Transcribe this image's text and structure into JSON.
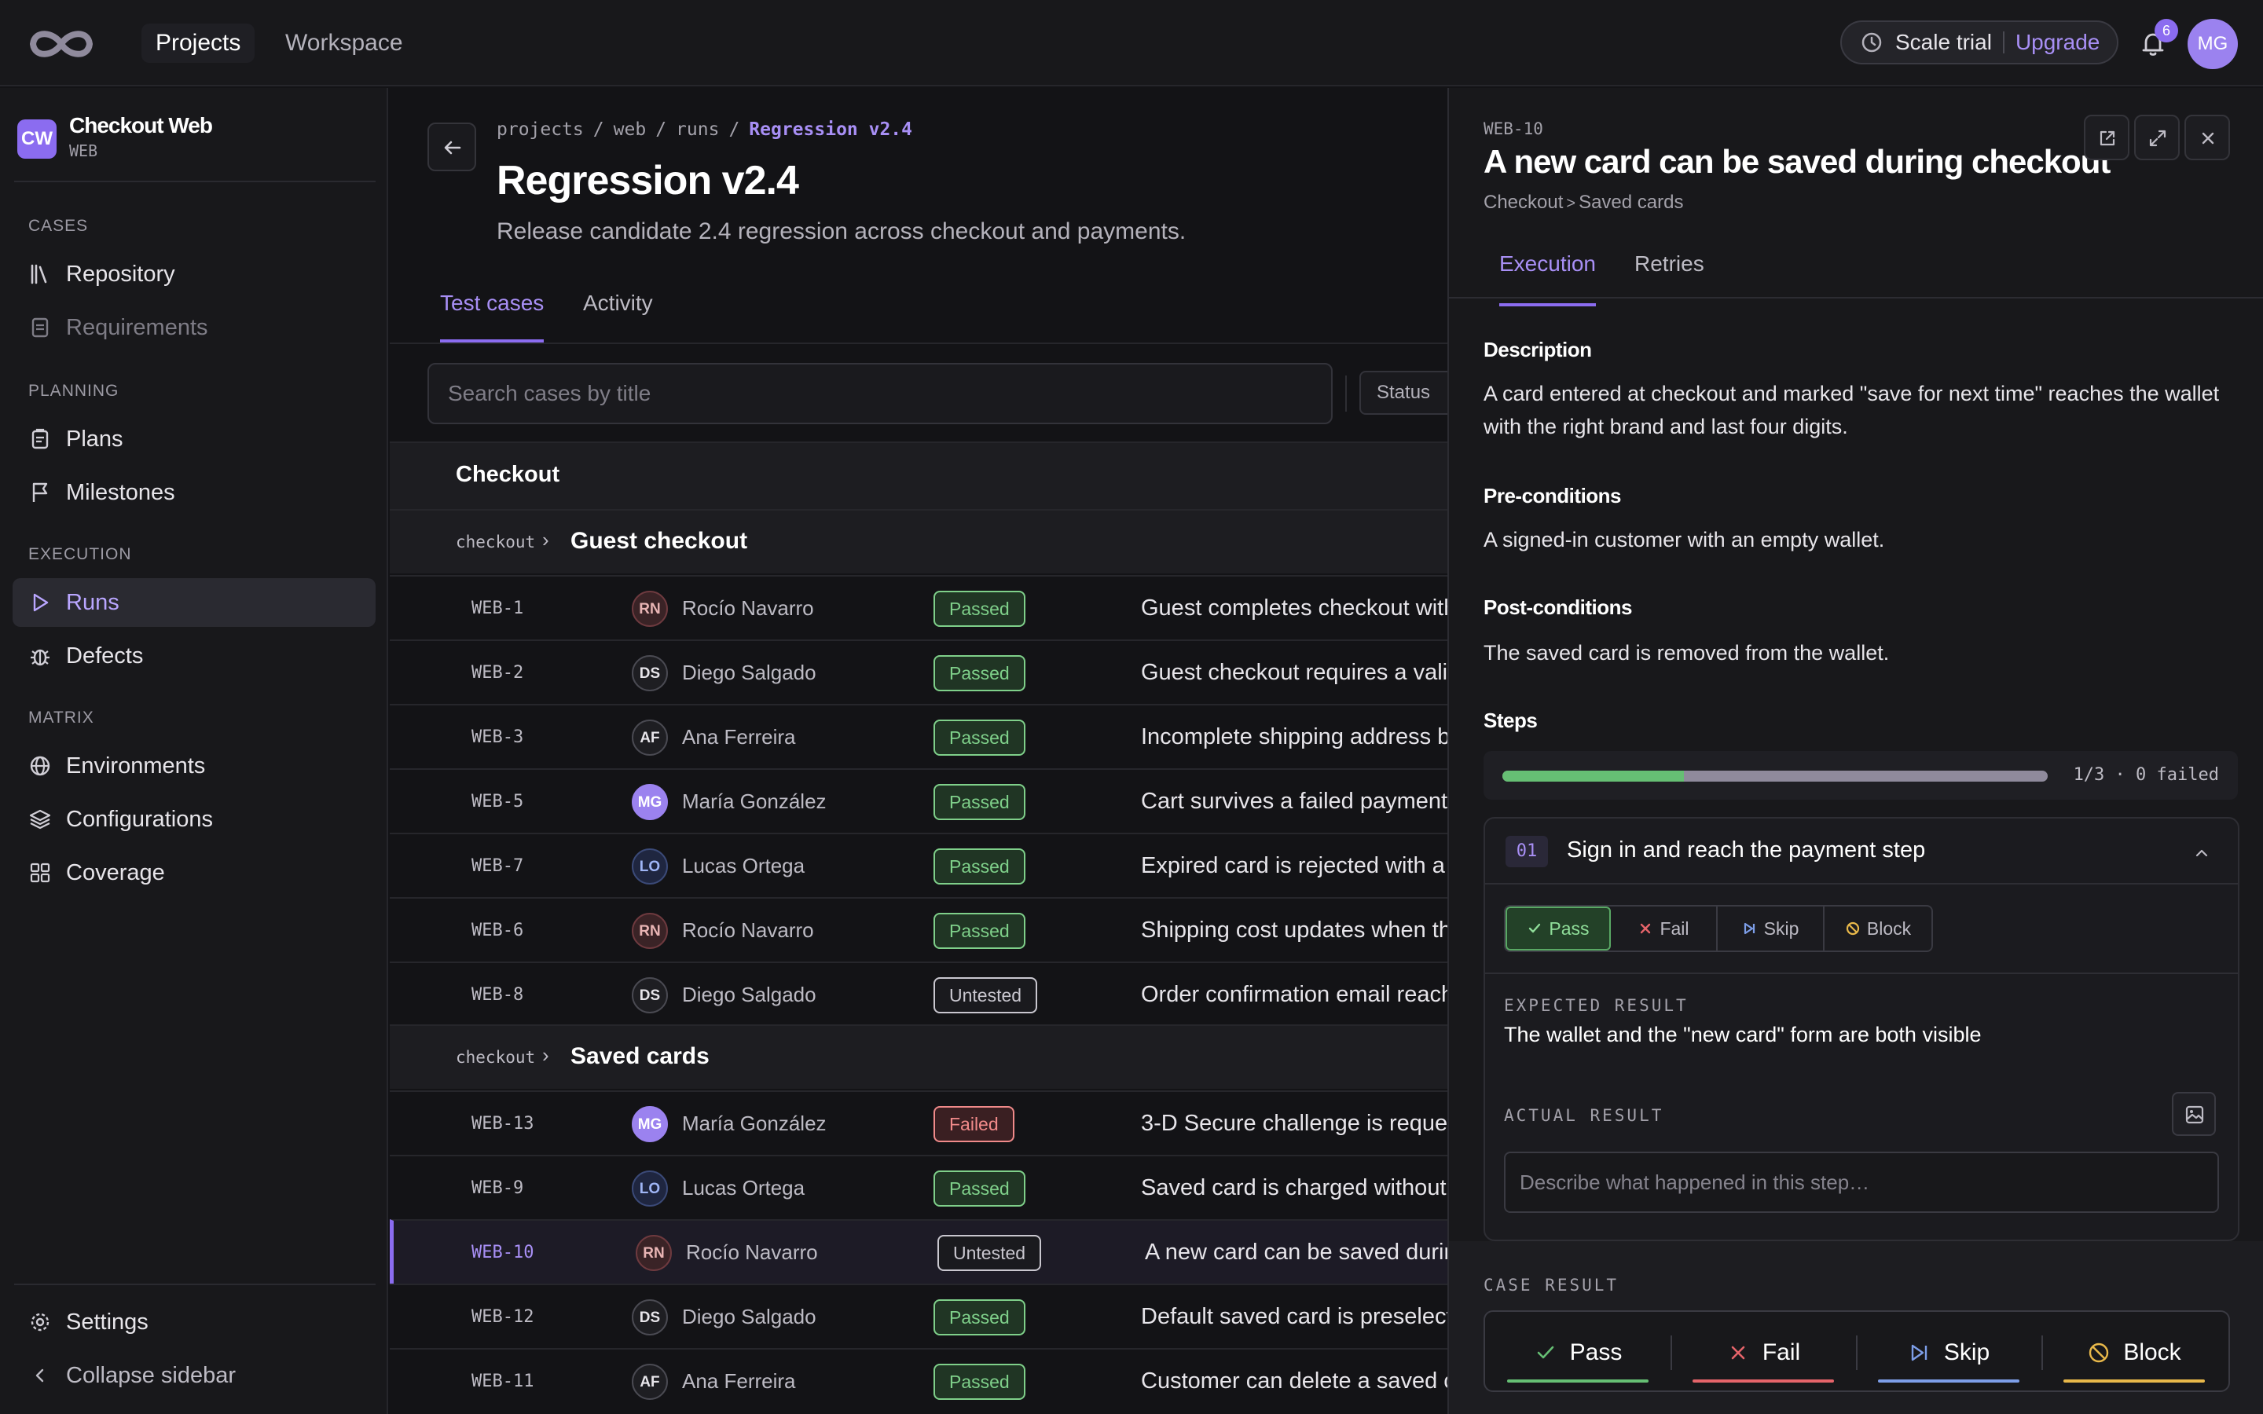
{
  "topbar": {
    "nav": [
      {
        "label": "Projects",
        "active": true
      },
      {
        "label": "Workspace",
        "active": false
      }
    ],
    "trial_label": "Scale trial",
    "upgrade_label": "Upgrade",
    "notification_count": "6",
    "user_initials": "MG"
  },
  "sidebar": {
    "project_initials": "CW",
    "project_name": "Checkout Web",
    "project_key": "WEB",
    "sections": [
      {
        "label": "CASES",
        "items": [
          {
            "label": "Repository",
            "icon": "book-icon"
          },
          {
            "label": "Requirements",
            "icon": "document-icon",
            "disabled": true
          }
        ]
      },
      {
        "label": "PLANNING",
        "items": [
          {
            "label": "Plans",
            "icon": "clipboard-icon"
          },
          {
            "label": "Milestones",
            "icon": "flag-icon"
          }
        ]
      },
      {
        "label": "EXECUTION",
        "items": [
          {
            "label": "Runs",
            "icon": "play-icon",
            "active": true
          },
          {
            "label": "Defects",
            "icon": "bug-icon"
          }
        ]
      },
      {
        "label": "MATRIX",
        "items": [
          {
            "label": "Environments",
            "icon": "globe-icon"
          },
          {
            "label": "Configurations",
            "icon": "layers-icon"
          },
          {
            "label": "Coverage",
            "icon": "grid-icon"
          }
        ]
      }
    ],
    "settings_label": "Settings",
    "collapse_label": "Collapse sidebar"
  },
  "main": {
    "breadcrumb": [
      "projects",
      "web",
      "runs",
      "Regression v2.4"
    ],
    "title": "Regression v2.4",
    "subtitle": "Release candidate 2.4 regression across checkout and payments.",
    "tabs": [
      "Test cases",
      "Activity"
    ],
    "search_placeholder": "Search cases by title",
    "status_filter_label": "Status",
    "group_title": "Checkout",
    "subgroups": [
      {
        "slug": "checkout",
        "title": "Guest checkout",
        "rows": [
          {
            "id": "WEB-1",
            "initials": "RN",
            "assignee": "Rocío Navarro",
            "status": "Passed",
            "title": "Guest completes checkout with"
          },
          {
            "id": "WEB-2",
            "initials": "DS",
            "assignee": "Diego Salgado",
            "status": "Passed",
            "title": "Guest checkout requires a valid"
          },
          {
            "id": "WEB-3",
            "initials": "AF",
            "assignee": "Ana Ferreira",
            "status": "Passed",
            "title": "Incomplete shipping address b"
          },
          {
            "id": "WEB-5",
            "initials": "MG",
            "assignee": "María González",
            "status": "Passed",
            "title": "Cart survives a failed payment"
          },
          {
            "id": "WEB-7",
            "initials": "LO",
            "assignee": "Lucas Ortega",
            "status": "Passed",
            "title": "Expired card is rejected with a"
          },
          {
            "id": "WEB-6",
            "initials": "RN",
            "assignee": "Rocío Navarro",
            "status": "Passed",
            "title": "Shipping cost updates when th"
          },
          {
            "id": "WEB-8",
            "initials": "DS",
            "assignee": "Diego Salgado",
            "status": "Untested",
            "title": "Order confirmation email reach"
          }
        ]
      },
      {
        "slug": "checkout",
        "title": "Saved cards",
        "rows": [
          {
            "id": "WEB-13",
            "initials": "MG",
            "assignee": "María González",
            "status": "Failed",
            "title": "3-D Secure challenge is reque"
          },
          {
            "id": "WEB-9",
            "initials": "LO",
            "assignee": "Lucas Ortega",
            "status": "Passed",
            "title": "Saved card is charged without"
          },
          {
            "id": "WEB-10",
            "initials": "RN",
            "assignee": "Rocío Navarro",
            "status": "Untested",
            "title": "A new card can be saved durin",
            "selected": true
          },
          {
            "id": "WEB-12",
            "initials": "DS",
            "assignee": "Diego Salgado",
            "status": "Passed",
            "title": "Default saved card is preselect"
          },
          {
            "id": "WEB-11",
            "initials": "AF",
            "assignee": "Ana Ferreira",
            "status": "Passed",
            "title": "Customer can delete a saved c"
          }
        ]
      }
    ]
  },
  "panel": {
    "case_id": "WEB-10",
    "title": "A new card can be saved during checkout",
    "crumb": [
      "Checkout",
      "Saved cards"
    ],
    "tabs": [
      "Execution",
      "Retries"
    ],
    "description_label": "Description",
    "description": "A card entered at checkout and marked \"save for next time\" reaches the wallet with the right brand and last four digits.",
    "preconditions_label": "Pre-conditions",
    "preconditions": "A signed-in customer with an empty wallet.",
    "postconditions_label": "Post-conditions",
    "postconditions": "The saved card is removed from the wallet.",
    "steps_label": "Steps",
    "progress_text": "1/3 · 0 failed",
    "progress_fraction": 0.333,
    "step": {
      "number": "01",
      "title": "Sign in and reach the payment step",
      "options": [
        "Pass",
        "Fail",
        "Skip",
        "Block"
      ],
      "selected": "Pass",
      "expected_label": "EXPECTED RESULT",
      "expected": "The wallet and the \"new card\" form are both visible",
      "actual_label": "ACTUAL RESULT",
      "actual_placeholder": "Describe what happened in this step…"
    },
    "case_result_label": "CASE RESULT",
    "case_result_buttons": [
      "Pass",
      "Fail",
      "Skip",
      "Block"
    ]
  },
  "colors": {
    "accent": "#8b6cf0",
    "passed": "#66bf74",
    "failed": "#e5646a",
    "skip": "#7d9ee8",
    "block": "#e8b84a"
  }
}
